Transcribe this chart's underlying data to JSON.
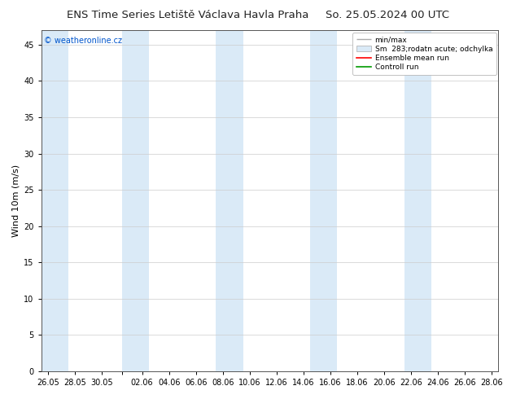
{
  "title_left": "ENS Time Series Letiště Václava Havla Praha",
  "title_right": "So. 25.05.2024 00 UTC",
  "ylabel": "Wind 10m (m/s)",
  "ylim": [
    0,
    47
  ],
  "yticks": [
    0,
    5,
    10,
    15,
    20,
    25,
    30,
    35,
    40,
    45
  ],
  "background_color": "#ffffff",
  "plot_bg_color": "#ffffff",
  "shade_color": "#daeaf7",
  "watermark": "© weatheronline.cz",
  "watermark_color": "#0055cc",
  "legend_entries": [
    "min/max",
    "Sm  283;rodatn acute; odchylka",
    "Ensemble mean run",
    "Controll run"
  ],
  "legend_line_colors": [
    "#aaaaaa",
    "#ccddee",
    "#ff0000",
    "#009900"
  ],
  "x_tick_labels": [
    "26.05",
    "28.05",
    "30.05",
    "",
    "02.06",
    "04.06",
    "06.06",
    "08.06",
    "10.06",
    "12.06",
    "14.06",
    "16.06",
    "18.06",
    "20.06",
    "22.06",
    "24.06",
    "26.06",
    "28.06"
  ],
  "title_fontsize": 9.5,
  "axis_label_fontsize": 8,
  "tick_fontsize": 7,
  "legend_fontsize": 6.5,
  "watermark_fontsize": 7
}
